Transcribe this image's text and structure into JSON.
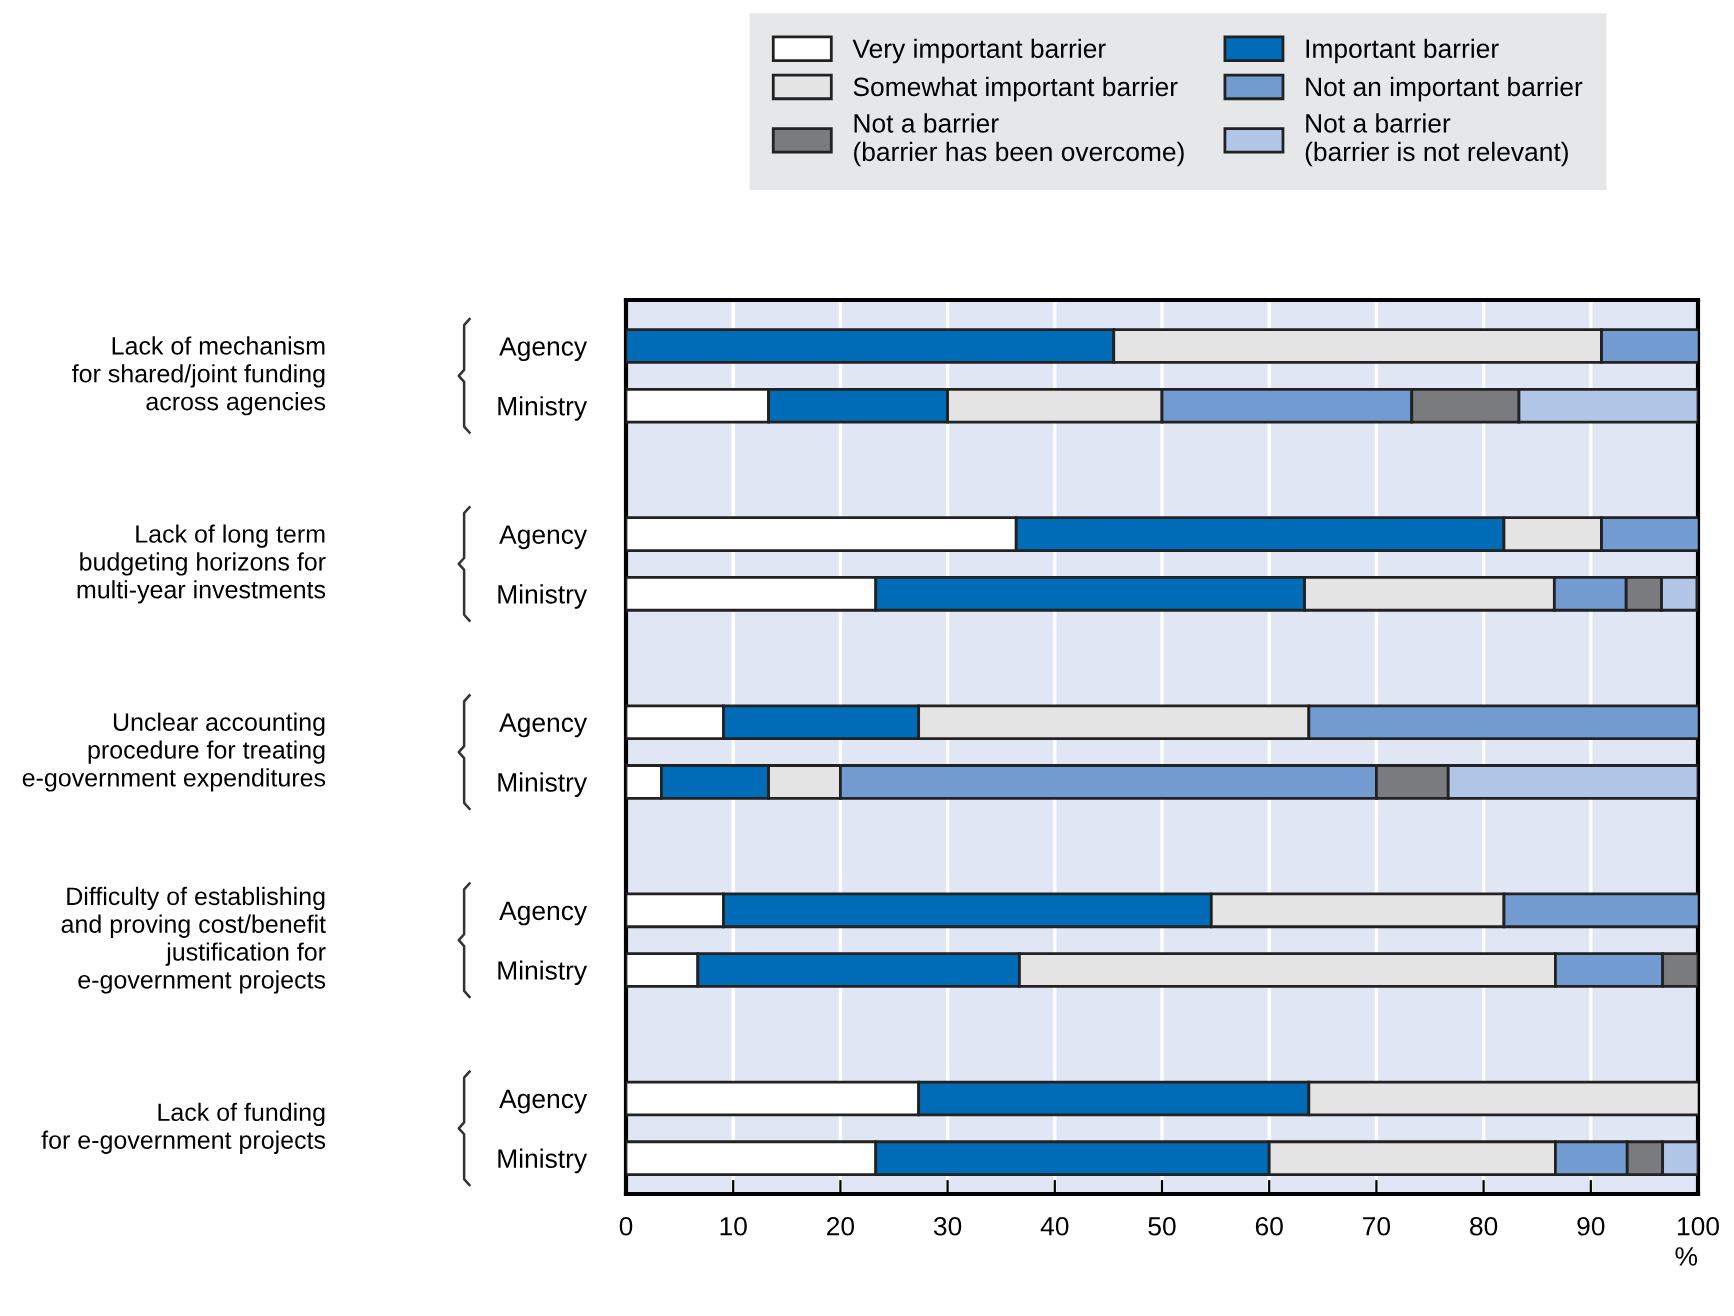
{
  "chart_data": {
    "type": "bar",
    "orientation": "horizontal",
    "stacked": true,
    "categories": [
      "Agency",
      "Ministry",
      "Agency",
      "Ministry",
      "Agency",
      "Ministry",
      "Agency",
      "Ministry",
      "Agency",
      "Ministry"
    ],
    "series": [
      {
        "name": "Very important barrier",
        "color": "#ffffff",
        "values": [
          null,
          13.3,
          36.4,
          23.3,
          9.1,
          3.3,
          9.1,
          6.7,
          27.3,
          23.3
        ]
      },
      {
        "name": "Important barrier",
        "color": "#006bb6",
        "values": [
          45.5,
          16.7,
          45.5,
          40,
          18.2,
          10,
          45.5,
          30,
          36.4,
          36.7
        ]
      },
      {
        "name": "Somewhat important barrier",
        "color": "#e4e4e4",
        "values": [
          45.5,
          20,
          9.1,
          23.3,
          36.4,
          6.7,
          27.3,
          50,
          36.4,
          26.7
        ]
      },
      {
        "name": "Not an important barrier",
        "color": "#729bd1",
        "values": [
          9.1,
          23.3,
          9.1,
          6.7,
          36.4,
          50,
          18.2,
          10,
          null,
          6.7
        ]
      },
      {
        "name": "Not a barrier\n(barrier has been overcome)",
        "color": "#7a7b7e",
        "values": [
          null,
          10,
          null,
          3.3,
          null,
          6.7,
          null,
          3.3,
          null,
          3.3
        ]
      },
      {
        "name": "Not a barrier\n(barrier is not relevant)",
        "color": "#b2c6e8",
        "values": [
          null,
          16.7,
          null,
          3.3,
          null,
          23.3,
          null,
          null,
          null,
          3.3
        ]
      }
    ],
    "annotations": [
      "Lack of mechanism\nfor shared/joint funding\nacross agencies",
      "Lack of long term\nbudgeting horizons for\nmulti-year investments",
      "Unclear accounting\nprocedure for treating\ne-government expenditures",
      "Difficulty of establishing\nand proving cost/benefit\njustification for\ne-government projects",
      "Lack of funding\nfor e-government projects"
    ],
    "xlabel": "%",
    "xlim": [
      0,
      100
    ],
    "xticks": [
      0,
      10,
      20,
      30,
      40,
      50,
      60,
      70,
      80,
      90,
      100
    ],
    "grid": "x",
    "legend": "top"
  }
}
